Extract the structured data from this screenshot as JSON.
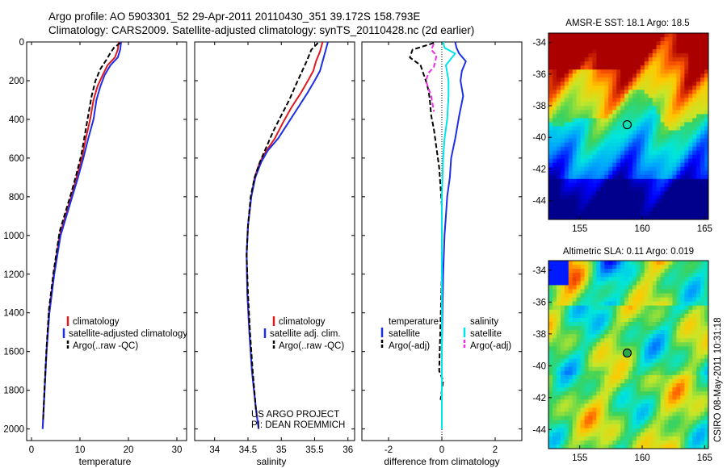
{
  "header": {
    "line1": "Argo profile: AO 5903301_52 29-Apr-2011 20110430_351 39.172S 158.793E",
    "line2": "Climatology: CARS2009. Satellite-adjusted climatology: synTS_20110428.nc (2d earlier)"
  },
  "timestamp": "CSIRO 08-May-2011 10:31:18",
  "project": {
    "line1": "US ARGO PROJECT",
    "line2": "PI: DEAN ROEMMICH"
  },
  "colors": {
    "red": "#e0191e",
    "blue": "#1c2ee6",
    "black": "#000000",
    "cyan": "#00e5ea",
    "magenta": "#f02ee8"
  },
  "chart_data": [
    {
      "type": "line",
      "name": "temperature-profile",
      "xlabel": "temperature",
      "ylabel": "",
      "xlim": [
        -1,
        32
      ],
      "ylim": [
        0,
        2060
      ],
      "xticks": [
        "0",
        "10",
        "20",
        "30"
      ],
      "yticks": [
        "0",
        "200",
        "400",
        "600",
        "800",
        "1000",
        "1200",
        "1400",
        "1600",
        "1800",
        "2000"
      ],
      "legend": [
        "climatology",
        "satellite-adjusted climatology",
        "Argo(..raw -QC)"
      ],
      "series": [
        {
          "name": "climatology",
          "color": "red",
          "dash": false,
          "x": [
            18.0,
            17.8,
            17.2,
            15.7,
            14.7,
            13.6,
            12.8,
            12.1,
            11.2,
            10.4,
            9.3,
            8.2,
            7.0,
            5.8,
            4.6,
            3.6,
            3.1,
            2.7,
            2.4,
            2.3
          ],
          "y": [
            0,
            40,
            80,
            120,
            170,
            230,
            300,
            400,
            500,
            600,
            700,
            800,
            900,
            1000,
            1200,
            1400,
            1600,
            1800,
            1950,
            2000
          ]
        },
        {
          "name": "satellite-adjusted climatology",
          "color": "blue",
          "dash": false,
          "x": [
            18.5,
            18.3,
            17.8,
            16.3,
            15.1,
            14.2,
            13.4,
            12.8,
            11.7,
            10.7,
            9.6,
            8.4,
            7.2,
            6.0,
            4.7,
            3.7,
            3.1,
            2.7,
            2.4,
            2.3
          ],
          "y": [
            0,
            40,
            80,
            120,
            170,
            230,
            300,
            400,
            500,
            600,
            700,
            800,
            900,
            1000,
            1200,
            1400,
            1600,
            1800,
            1950,
            2000
          ]
        },
        {
          "name": "Argo(..raw -QC)",
          "color": "black",
          "dash": true,
          "x": [
            18.3,
            17.0,
            16.2,
            15.5,
            14.2,
            13.2,
            12.4,
            11.7,
            11.0,
            10.3,
            9.3,
            8.2,
            7.0,
            5.8,
            4.6,
            3.6,
            3.1,
            2.7,
            2.4
          ],
          "y": [
            5,
            30,
            60,
            90,
            140,
            200,
            280,
            380,
            480,
            580,
            680,
            780,
            880,
            980,
            1180,
            1380,
            1580,
            1780,
            1950
          ]
        }
      ]
    },
    {
      "type": "line",
      "name": "salinity-profile",
      "xlabel": "salinity",
      "xlim": [
        33.7,
        36.1
      ],
      "ylim": [
        0,
        2060
      ],
      "xticks": [
        "34",
        "34.5",
        "35",
        "35.5",
        "36"
      ],
      "legend": [
        "climatology",
        "satellite adj. clim.",
        "Argo(..raw -QC)"
      ],
      "series": [
        {
          "name": "climatology",
          "color": "red",
          "dash": false,
          "x": [
            35.62,
            35.58,
            35.52,
            35.48,
            35.4,
            35.3,
            35.15,
            35.02,
            34.9,
            34.78,
            34.68,
            34.6,
            34.55,
            34.5,
            34.48,
            34.49,
            34.52,
            34.56,
            34.62,
            34.66
          ],
          "y": [
            0,
            50,
            100,
            150,
            200,
            260,
            340,
            420,
            500,
            560,
            620,
            700,
            800,
            950,
            1100,
            1300,
            1500,
            1700,
            1900,
            2000
          ]
        },
        {
          "name": "satellite adj. clim.",
          "color": "blue",
          "dash": false,
          "x": [
            35.7,
            35.66,
            35.62,
            35.58,
            35.5,
            35.4,
            35.25,
            35.1,
            34.95,
            34.8,
            34.7,
            34.61,
            34.55,
            34.5,
            34.48,
            34.49,
            34.52,
            34.56,
            34.62,
            34.66
          ],
          "y": [
            0,
            50,
            100,
            150,
            200,
            260,
            340,
            420,
            500,
            560,
            620,
            700,
            800,
            950,
            1100,
            1300,
            1500,
            1700,
            1900,
            2000
          ]
        },
        {
          "name": "Argo(..raw -QC)",
          "color": "black",
          "dash": true,
          "x": [
            35.55,
            35.45,
            35.38,
            35.3,
            35.22,
            35.12,
            35.0,
            34.88,
            34.78,
            34.68,
            34.6,
            34.54,
            34.5,
            34.48,
            34.5,
            34.53,
            34.57,
            34.62
          ],
          "y": [
            5,
            40,
            100,
            160,
            220,
            300,
            380,
            460,
            540,
            620,
            700,
            800,
            950,
            1100,
            1300,
            1500,
            1700,
            1900
          ]
        }
      ]
    },
    {
      "type": "line",
      "name": "difference-profile",
      "xlabel": "difference from climatology",
      "xlim": [
        -3,
        3
      ],
      "ylim": [
        0,
        2060
      ],
      "xticks": [
        "-2",
        "0",
        "2"
      ],
      "legend_left_title": "temperature",
      "legend_right_title": "salinity",
      "legend_left": [
        "satellite",
        "Argo(-adj)"
      ],
      "legend_right": [
        "satellite",
        "Argo(-adj)"
      ],
      "series": [
        {
          "name": "temperature satellite",
          "color": "blue",
          "dash": false,
          "x": [
            0.5,
            0.55,
            0.65,
            0.9,
            0.75,
            0.7,
            0.8,
            0.65,
            0.5,
            0.35,
            0.3,
            0.2,
            0.15,
            0.1,
            0.05,
            0.02,
            0.0,
            0.0
          ],
          "y": [
            0,
            30,
            60,
            100,
            150,
            200,
            280,
            380,
            500,
            600,
            700,
            800,
            900,
            1000,
            1200,
            1400,
            1600,
            2000
          ]
        },
        {
          "name": "temperature Argo(-adj)",
          "color": "black",
          "dash": true,
          "x": [
            -0.3,
            -1.1,
            -1.2,
            -0.8,
            -0.7,
            -0.6,
            -0.5,
            -0.45,
            -0.4,
            -0.3,
            -0.2,
            -0.1,
            -0.05,
            0.0,
            0.0,
            0.0,
            -0.1,
            0.05,
            -0.05
          ],
          "y": [
            5,
            40,
            80,
            120,
            160,
            200,
            250,
            300,
            380,
            450,
            550,
            650,
            750,
            850,
            1000,
            1200,
            1700,
            1750,
            1850
          ]
        },
        {
          "name": "salinity satellite",
          "color": "cyan",
          "dash": false,
          "x": [
            0.05,
            0.1,
            0.5,
            0.15,
            0.25,
            0.25,
            0.2,
            0.1,
            0.05,
            0.0,
            0.0,
            0.0,
            0.0
          ],
          "y": [
            0,
            30,
            60,
            120,
            200,
            280,
            400,
            500,
            600,
            800,
            1200,
            1600,
            2000
          ]
        },
        {
          "name": "salinity Argo(-adj)",
          "color": "magenta",
          "dash": true,
          "x": [
            -0.3,
            -0.4,
            -0.2,
            -0.25,
            -0.3,
            -0.5,
            -0.6,
            -0.5,
            -0.4,
            -0.35,
            -0.3
          ],
          "y": [
            10,
            40,
            70,
            100,
            130,
            160,
            200,
            240,
            280,
            320,
            360
          ]
        }
      ]
    },
    {
      "type": "heatmap",
      "name": "sst-map",
      "title": "AMSR-E SST: 18.1 Argo: 18.5",
      "xlim": [
        152.5,
        165.3
      ],
      "ylim": [
        -45.2,
        -33.4
      ],
      "xticks": [
        "155",
        "160",
        "165"
      ],
      "yticks": [
        "-34",
        "-36",
        "-38",
        "-40",
        "-42",
        "-44"
      ],
      "marker": {
        "lon": 158.8,
        "lat": -39.2
      }
    },
    {
      "type": "heatmap",
      "name": "sla-map",
      "title": "Altimetric SLA: 0.11 Argo: 0.019",
      "xlim": [
        152.5,
        165.3
      ],
      "ylim": [
        -45.2,
        -33.4
      ],
      "xticks": [
        "155",
        "160",
        "165"
      ],
      "yticks": [
        "-34",
        "-36",
        "-38",
        "-40",
        "-42",
        "-44"
      ],
      "marker": {
        "lon": 158.8,
        "lat": -39.2
      }
    }
  ]
}
